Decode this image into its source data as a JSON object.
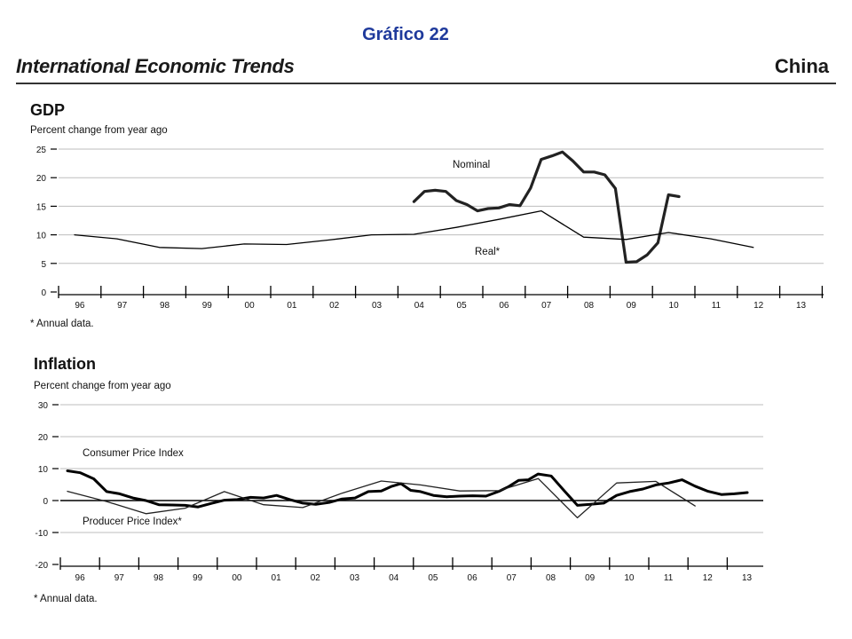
{
  "header": {
    "title": "Gráfico 22",
    "banner_left": "International Economic Trends",
    "banner_right": "China"
  },
  "chart_data": [
    {
      "type": "line",
      "title": "GDP",
      "subtitle": "Percent change from year ago",
      "footnote": "* Annual data.",
      "ylim": [
        0,
        25
      ],
      "yticks": [
        0,
        5,
        10,
        15,
        20,
        25
      ],
      "grid": true,
      "x_range": [
        1996,
        2014
      ],
      "x_tick_labels": [
        "96",
        "97",
        "98",
        "99",
        "00",
        "01",
        "02",
        "03",
        "04",
        "05",
        "06",
        "07",
        "08",
        "09",
        "10",
        "11",
        "12",
        "13"
      ],
      "series": [
        {
          "name": "Nominal",
          "color": "#222222",
          "x": [
            2004.0,
            2004.25,
            2004.5,
            2004.75,
            2005.0,
            2005.25,
            2005.5,
            2005.75,
            2006.0,
            2006.25,
            2006.5,
            2006.75,
            2007.0,
            2007.25,
            2007.5,
            2007.75,
            2008.0,
            2008.25,
            2008.5,
            2008.75,
            2009.0,
            2009.25,
            2009.5,
            2009.75,
            2010.0,
            2010.25
          ],
          "values": [
            15.8,
            17.6,
            17.8,
            17.6,
            16.0,
            15.3,
            14.2,
            14.6,
            14.7,
            15.3,
            15.1,
            18.2,
            23.2,
            23.8,
            24.5,
            22.9,
            21.0,
            21.0,
            20.5,
            18.1,
            5.2,
            5.3,
            6.5,
            8.6,
            17.0,
            16.7
          ]
        },
        {
          "name": "Real*",
          "color": "#000000",
          "x": [
            1996,
            1997,
            1998,
            1999,
            2000,
            2001,
            2002,
            2003,
            2004,
            2005,
            2006,
            2007,
            2008,
            2009,
            2010,
            2011,
            2012
          ],
          "values": [
            10.0,
            9.3,
            7.8,
            7.6,
            8.4,
            8.3,
            9.1,
            10.0,
            10.1,
            11.3,
            12.7,
            14.2,
            9.6,
            9.2,
            10.4,
            9.3,
            7.8
          ]
        }
      ]
    },
    {
      "type": "line",
      "title": "Inflation",
      "subtitle": "Percent change from year ago",
      "footnote": "* Annual data.",
      "ylim": [
        -20,
        30
      ],
      "yticks": [
        -20,
        -10,
        0,
        10,
        20,
        30
      ],
      "grid": true,
      "x_range": [
        1996,
        2014
      ],
      "x_tick_labels": [
        "96",
        "97",
        "98",
        "99",
        "00",
        "01",
        "02",
        "03",
        "04",
        "05",
        "06",
        "07",
        "08",
        "09",
        "10",
        "11",
        "12",
        "13"
      ],
      "series": [
        {
          "name": "Consumer Price Index",
          "color": "#000000",
          "x": [
            1996.0,
            1996.33,
            1996.67,
            1997.0,
            1997.33,
            1997.67,
            1998.0,
            1998.33,
            1998.67,
            1999.0,
            1999.33,
            1999.67,
            2000.0,
            2000.33,
            2000.67,
            2001.0,
            2001.33,
            2001.67,
            2002.0,
            2002.33,
            2002.67,
            2003.0,
            2003.33,
            2003.67,
            2004.0,
            2004.25,
            2004.5,
            2004.75,
            2005.0,
            2005.33,
            2005.67,
            2006.0,
            2006.33,
            2006.67,
            2007.0,
            2007.25,
            2007.5,
            2007.75,
            2008.0,
            2008.33,
            2008.67,
            2009.0,
            2009.33,
            2009.67,
            2010.0,
            2010.33,
            2010.67,
            2011.0,
            2011.33,
            2011.67,
            2012.0,
            2012.33,
            2012.67,
            2013.0,
            2013.33
          ],
          "values": [
            9.3,
            8.7,
            6.8,
            2.8,
            2.1,
            0.8,
            0.0,
            -1.3,
            -1.4,
            -1.5,
            -2.0,
            -0.9,
            0.1,
            0.3,
            1.0,
            0.8,
            1.6,
            0.3,
            -0.8,
            -1.2,
            -0.6,
            0.5,
            0.8,
            2.8,
            3.0,
            4.4,
            5.3,
            3.2,
            2.8,
            1.6,
            1.2,
            1.4,
            1.5,
            1.4,
            2.9,
            4.4,
            6.3,
            6.5,
            8.3,
            7.7,
            3.0,
            -1.5,
            -1.2,
            -0.8,
            1.6,
            2.8,
            3.6,
            4.9,
            5.5,
            6.5,
            4.5,
            2.9,
            1.9,
            2.1,
            2.5
          ]
        },
        {
          "name": "Producer Price Index*",
          "color": "#222222",
          "x": [
            1996,
            1997,
            1998,
            1999,
            2000,
            2001,
            2002,
            2003,
            2004,
            2005,
            2006,
            2007,
            2008,
            2009,
            2010,
            2011,
            2012
          ],
          "values": [
            2.9,
            -0.3,
            -4.1,
            -2.4,
            2.8,
            -1.3,
            -2.2,
            2.3,
            6.1,
            4.9,
            3.0,
            3.1,
            6.9,
            -5.4,
            5.5,
            6.0,
            -1.7
          ]
        }
      ]
    }
  ]
}
